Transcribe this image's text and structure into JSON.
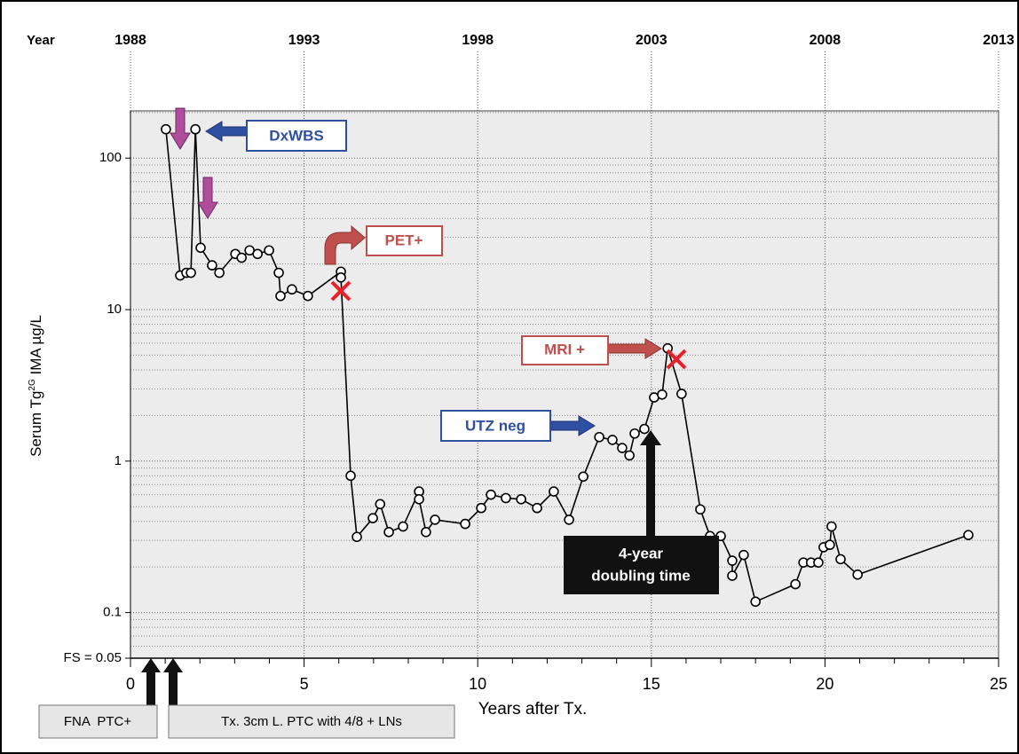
{
  "chart_data": {
    "type": "line",
    "top_label": "Year",
    "x_label": "Years after Tx.",
    "y_label": "Serum Tg",
    "y_label_sup": "2G",
    "y_label_rest": " IMA µg/L",
    "log_y": true,
    "grid": true,
    "color": "#000000",
    "xlim": [
      0,
      25
    ],
    "xticks": [
      0,
      5,
      10,
      15,
      20,
      25
    ],
    "xminorticks": [
      1,
      2,
      3,
      4,
      6,
      7,
      8,
      9,
      11,
      12,
      13,
      14,
      16,
      17,
      18,
      19,
      21,
      22,
      23,
      24
    ],
    "x2lim": [
      1988,
      2013
    ],
    "x2ticks": [
      1988,
      1993,
      1998,
      2003,
      2008,
      2013
    ],
    "ylim": [
      0.05,
      205
    ],
    "yticks": [
      {
        "value": 0.05,
        "label": "FS = 0.05"
      },
      0.1,
      1,
      10,
      100
    ],
    "yminorticks": [
      0.06,
      0.07,
      0.08,
      0.09,
      0.2,
      0.3,
      0.4,
      0.5,
      0.6,
      0.7,
      0.8,
      0.9,
      2,
      3,
      4,
      5,
      6,
      7,
      8,
      9,
      20,
      30,
      40,
      50,
      60,
      70,
      80,
      90,
      200
    ],
    "x": [
      1.02,
      1.43,
      1.61,
      1.74,
      1.87,
      2.02,
      2.35,
      2.56,
      3.02,
      3.2,
      3.43,
      3.66,
      3.99,
      4.27,
      4.32,
      4.65,
      5.11,
      6.06,
      6.06,
      6.34,
      6.52,
      6.98,
      7.19,
      7.44,
      7.85,
      8.31,
      8.31,
      8.51,
      8.77,
      9.64,
      10.1,
      10.38,
      10.81,
      11.25,
      11.71,
      12.19,
      12.63,
      13.04,
      13.5,
      13.88,
      14.16,
      14.37,
      14.52,
      14.8,
      15.08,
      15.31,
      15.47,
      15.87,
      16.41,
      16.69,
      17.0,
      17.33,
      17.33,
      17.66,
      18.0,
      19.15,
      19.38,
      19.6,
      19.81,
      19.96,
      20.14,
      20.19,
      20.45,
      20.94,
      24.13
    ],
    "y": [
      155,
      16.8,
      17.5,
      17.5,
      155,
      25.6,
      19.6,
      17.5,
      23.3,
      22,
      24.6,
      23.3,
      24.6,
      17.5,
      12.3,
      13.6,
      12.3,
      17.8,
      16.3,
      0.8,
      0.316,
      0.42,
      0.52,
      0.34,
      0.37,
      0.63,
      0.56,
      0.34,
      0.41,
      0.385,
      0.49,
      0.6,
      0.57,
      0.56,
      0.49,
      0.63,
      0.41,
      0.79,
      1.44,
      1.38,
      1.22,
      1.09,
      1.52,
      1.63,
      2.63,
      2.75,
      5.55,
      2.78,
      0.48,
      0.32,
      0.32,
      0.22,
      0.175,
      0.24,
      0.118,
      0.154,
      0.214,
      0.214,
      0.214,
      0.27,
      0.28,
      0.37,
      0.225,
      0.178,
      0.325
    ],
    "annotations": [
      "DxWBS",
      "PET+",
      "MRI +",
      "UTZ neg",
      "4-year",
      "doubling time",
      "FNA  PTC+",
      "Tx. 3cm L. PTC with 4/8 + LNs"
    ]
  }
}
